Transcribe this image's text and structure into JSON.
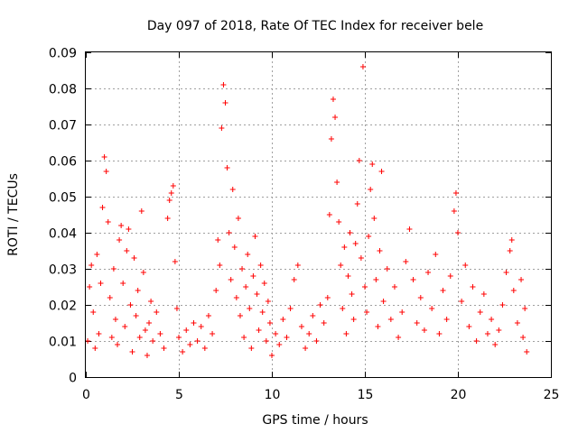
{
  "chart_data": {
    "type": "scatter",
    "title": "Day 097 of 2018, Rate Of TEC Index for receiver bele",
    "xlabel": "GPS time / hours",
    "ylabel": "ROTI / TECUs",
    "xlim": [
      0,
      25
    ],
    "ylim": [
      0,
      0.09
    ],
    "xticks": [
      0,
      5,
      10,
      15,
      20,
      25
    ],
    "yticks": [
      0,
      0.01,
      0.02,
      0.03,
      0.04,
      0.05,
      0.06,
      0.07,
      0.08,
      0.09
    ],
    "xtick_labels": [
      "0",
      "5",
      "10",
      "15",
      "20",
      "25"
    ],
    "ytick_labels": [
      "0",
      "0.01",
      "0.02",
      "0.03",
      "0.04",
      "0.05",
      "0.06",
      "0.07",
      "0.08",
      "0.09"
    ],
    "grid": true,
    "marker": "+",
    "color": "#ff0000",
    "series": [
      {
        "points": [
          [
            0.1,
            0.01
          ],
          [
            0.2,
            0.025
          ],
          [
            0.3,
            0.031
          ],
          [
            0.4,
            0.018
          ],
          [
            0.5,
            0.008
          ],
          [
            0.6,
            0.034
          ],
          [
            0.7,
            0.012
          ],
          [
            0.8,
            0.026
          ],
          [
            0.9,
            0.047
          ],
          [
            1.0,
            0.061
          ],
          [
            1.1,
            0.057
          ],
          [
            1.2,
            0.043
          ],
          [
            1.3,
            0.022
          ],
          [
            1.4,
            0.011
          ],
          [
            1.5,
            0.03
          ],
          [
            1.6,
            0.016
          ],
          [
            1.7,
            0.009
          ],
          [
            1.8,
            0.038
          ],
          [
            1.9,
            0.042
          ],
          [
            2.0,
            0.026
          ],
          [
            2.1,
            0.014
          ],
          [
            2.2,
            0.035
          ],
          [
            2.3,
            0.041
          ],
          [
            2.4,
            0.02
          ],
          [
            2.5,
            0.007
          ],
          [
            2.6,
            0.033
          ],
          [
            2.7,
            0.017
          ],
          [
            2.8,
            0.024
          ],
          [
            2.9,
            0.011
          ],
          [
            3.0,
            0.046
          ],
          [
            3.1,
            0.029
          ],
          [
            3.2,
            0.013
          ],
          [
            3.3,
            0.006
          ],
          [
            3.4,
            0.015
          ],
          [
            3.5,
            0.021
          ],
          [
            3.6,
            0.01
          ],
          [
            3.8,
            0.018
          ],
          [
            4.0,
            0.012
          ],
          [
            4.2,
            0.008
          ],
          [
            4.4,
            0.044
          ],
          [
            4.5,
            0.049
          ],
          [
            4.6,
            0.051
          ],
          [
            4.7,
            0.053
          ],
          [
            4.8,
            0.032
          ],
          [
            4.9,
            0.019
          ],
          [
            5.0,
            0.011
          ],
          [
            5.2,
            0.007
          ],
          [
            5.4,
            0.013
          ],
          [
            5.6,
            0.009
          ],
          [
            5.8,
            0.015
          ],
          [
            6.0,
            0.01
          ],
          [
            6.2,
            0.014
          ],
          [
            6.4,
            0.008
          ],
          [
            6.6,
            0.017
          ],
          [
            6.8,
            0.012
          ],
          [
            7.0,
            0.024
          ],
          [
            7.1,
            0.038
          ],
          [
            7.2,
            0.031
          ],
          [
            7.3,
            0.069
          ],
          [
            7.4,
            0.081
          ],
          [
            7.5,
            0.076
          ],
          [
            7.6,
            0.058
          ],
          [
            7.7,
            0.04
          ],
          [
            7.8,
            0.027
          ],
          [
            7.9,
            0.052
          ],
          [
            8.0,
            0.036
          ],
          [
            8.1,
            0.022
          ],
          [
            8.2,
            0.044
          ],
          [
            8.3,
            0.017
          ],
          [
            8.4,
            0.03
          ],
          [
            8.5,
            0.011
          ],
          [
            8.6,
            0.025
          ],
          [
            8.7,
            0.034
          ],
          [
            8.8,
            0.019
          ],
          [
            8.9,
            0.008
          ],
          [
            9.0,
            0.028
          ],
          [
            9.1,
            0.039
          ],
          [
            9.2,
            0.023
          ],
          [
            9.3,
            0.013
          ],
          [
            9.4,
            0.031
          ],
          [
            9.5,
            0.018
          ],
          [
            9.6,
            0.026
          ],
          [
            9.7,
            0.01
          ],
          [
            9.8,
            0.021
          ],
          [
            9.9,
            0.015
          ],
          [
            10.0,
            0.006
          ],
          [
            10.2,
            0.012
          ],
          [
            10.4,
            0.009
          ],
          [
            10.6,
            0.016
          ],
          [
            10.8,
            0.011
          ],
          [
            11.0,
            0.019
          ],
          [
            11.2,
            0.027
          ],
          [
            11.4,
            0.031
          ],
          [
            11.6,
            0.014
          ],
          [
            11.8,
            0.008
          ],
          [
            12.0,
            0.012
          ],
          [
            12.2,
            0.017
          ],
          [
            12.4,
            0.01
          ],
          [
            12.6,
            0.02
          ],
          [
            12.8,
            0.015
          ],
          [
            13.0,
            0.022
          ],
          [
            13.1,
            0.045
          ],
          [
            13.2,
            0.066
          ],
          [
            13.3,
            0.077
          ],
          [
            13.4,
            0.072
          ],
          [
            13.5,
            0.054
          ],
          [
            13.6,
            0.043
          ],
          [
            13.7,
            0.031
          ],
          [
            13.8,
            0.019
          ],
          [
            13.9,
            0.036
          ],
          [
            14.0,
            0.012
          ],
          [
            14.1,
            0.028
          ],
          [
            14.2,
            0.04
          ],
          [
            14.3,
            0.023
          ],
          [
            14.4,
            0.016
          ],
          [
            14.5,
            0.037
          ],
          [
            14.6,
            0.048
          ],
          [
            14.7,
            0.06
          ],
          [
            14.8,
            0.033
          ],
          [
            14.9,
            0.086
          ],
          [
            15.0,
            0.025
          ],
          [
            15.1,
            0.018
          ],
          [
            15.2,
            0.039
          ],
          [
            15.3,
            0.052
          ],
          [
            15.4,
            0.059
          ],
          [
            15.5,
            0.044
          ],
          [
            15.6,
            0.027
          ],
          [
            15.7,
            0.014
          ],
          [
            15.8,
            0.035
          ],
          [
            15.9,
            0.057
          ],
          [
            16.0,
            0.021
          ],
          [
            16.2,
            0.03
          ],
          [
            16.4,
            0.016
          ],
          [
            16.6,
            0.025
          ],
          [
            16.8,
            0.011
          ],
          [
            17.0,
            0.018
          ],
          [
            17.2,
            0.032
          ],
          [
            17.4,
            0.041
          ],
          [
            17.6,
            0.027
          ],
          [
            17.8,
            0.015
          ],
          [
            18.0,
            0.022
          ],
          [
            18.2,
            0.013
          ],
          [
            18.4,
            0.029
          ],
          [
            18.6,
            0.019
          ],
          [
            18.8,
            0.034
          ],
          [
            19.0,
            0.012
          ],
          [
            19.2,
            0.024
          ],
          [
            19.4,
            0.016
          ],
          [
            19.6,
            0.028
          ],
          [
            19.8,
            0.046
          ],
          [
            19.9,
            0.051
          ],
          [
            20.0,
            0.04
          ],
          [
            20.2,
            0.021
          ],
          [
            20.4,
            0.031
          ],
          [
            20.6,
            0.014
          ],
          [
            20.8,
            0.025
          ],
          [
            21.0,
            0.01
          ],
          [
            21.2,
            0.018
          ],
          [
            21.4,
            0.023
          ],
          [
            21.6,
            0.012
          ],
          [
            21.8,
            0.016
          ],
          [
            22.0,
            0.009
          ],
          [
            22.2,
            0.013
          ],
          [
            22.4,
            0.02
          ],
          [
            22.6,
            0.029
          ],
          [
            22.8,
            0.035
          ],
          [
            22.9,
            0.038
          ],
          [
            23.0,
            0.024
          ],
          [
            23.2,
            0.015
          ],
          [
            23.4,
            0.027
          ],
          [
            23.5,
            0.011
          ],
          [
            23.6,
            0.019
          ],
          [
            23.7,
            0.007
          ]
        ]
      }
    ]
  }
}
